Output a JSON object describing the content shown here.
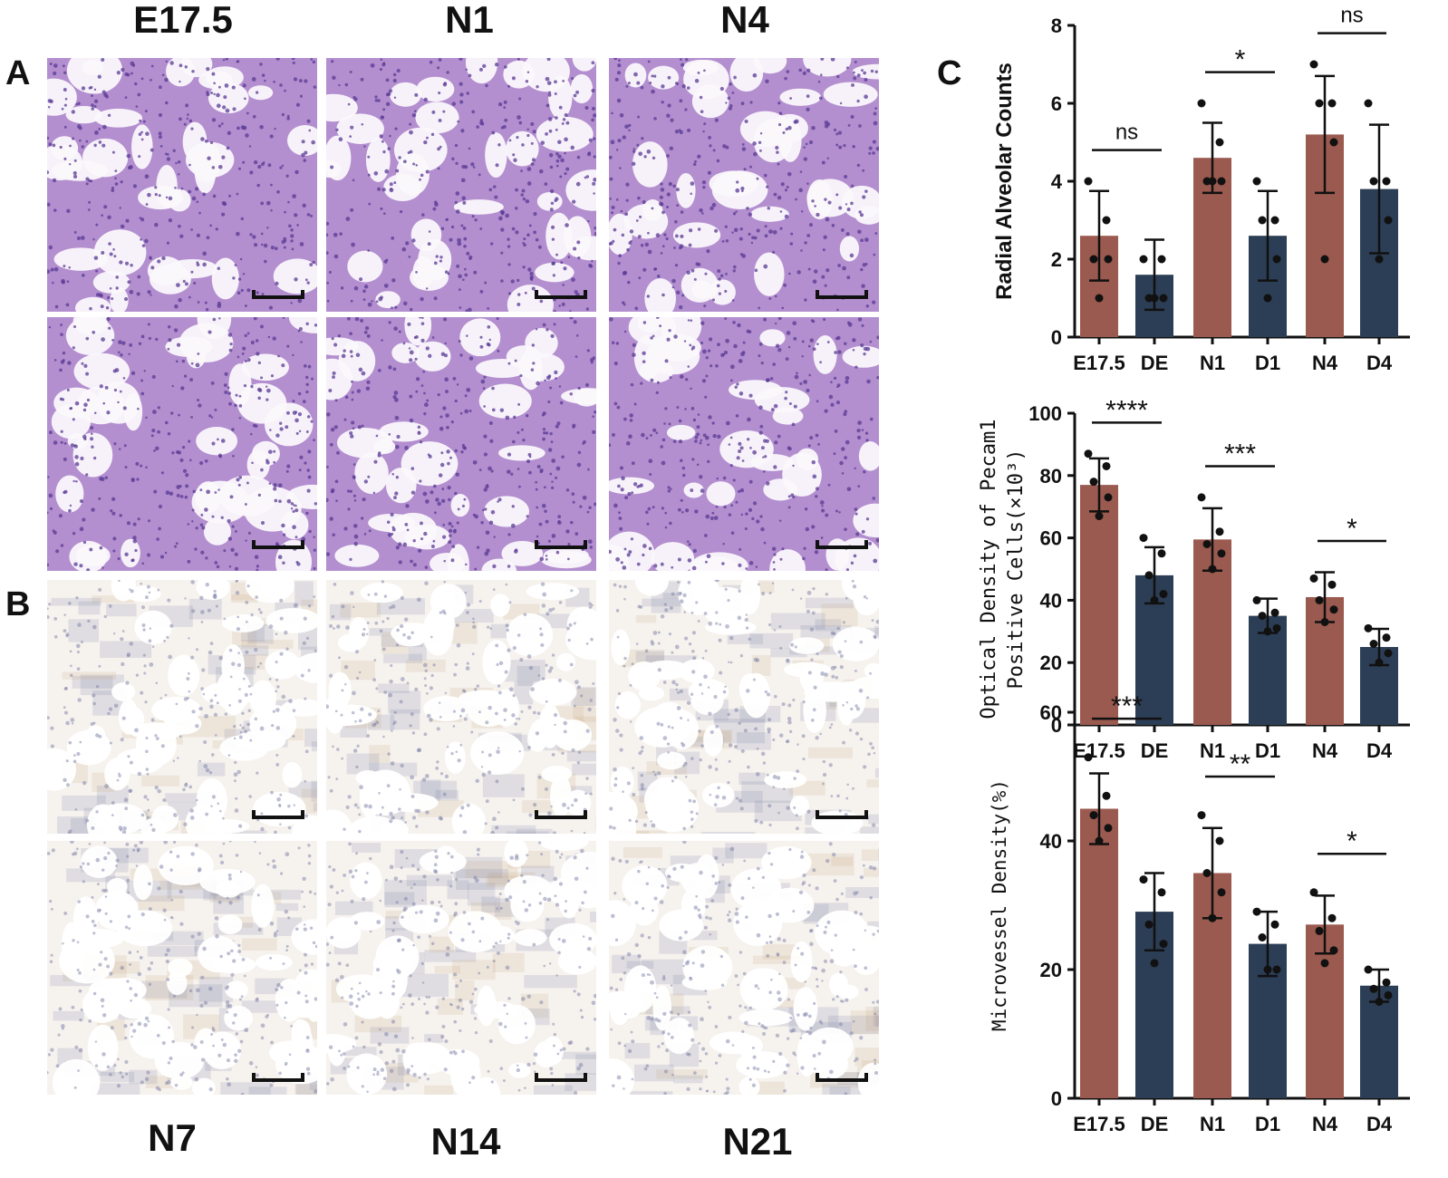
{
  "panels": {
    "A": "A",
    "B": "B",
    "C": "C"
  },
  "image_grid": {
    "top_labels": [
      "E17.5",
      "N1",
      "N4"
    ],
    "bottom_labels": [
      "N7",
      "N14",
      "N21"
    ]
  },
  "colors": {
    "normal": "#9b5a4f",
    "dexamethasone": "#2c3e55",
    "he_stain_bg": "#b38fcf",
    "he_stain_cell": "#5a3a94",
    "ihc_bg": "#f6f2ee",
    "ihc_cell": "#7c7fa8",
    "ihc_brown": "#c9a77e"
  },
  "chart_data": [
    {
      "type": "bar",
      "ylabel": "Radial Alveolar Counts",
      "categories": [
        "E17.5",
        "DE",
        "N1",
        "D1",
        "N4",
        "D4"
      ],
      "values": [
        2.6,
        1.6,
        4.6,
        2.6,
        5.2,
        3.8
      ],
      "errors": [
        1.15,
        0.9,
        0.9,
        1.15,
        1.5,
        1.65
      ],
      "points": [
        [
          4,
          3,
          2,
          2,
          1
        ],
        [
          2,
          2,
          1,
          1,
          1
        ],
        [
          6,
          5,
          4,
          4,
          4
        ],
        [
          4,
          3,
          3,
          2,
          1
        ],
        [
          7,
          6,
          6,
          5,
          2
        ],
        [
          6,
          4,
          4,
          3,
          2
        ]
      ],
      "ylim": [
        0,
        8
      ],
      "yticks": [
        0,
        2,
        4,
        6,
        8
      ],
      "significance": [
        {
          "from": 0,
          "to": 1,
          "label": "ns"
        },
        {
          "from": 2,
          "to": 3,
          "label": "*"
        },
        {
          "from": 4,
          "to": 5,
          "label": "ns"
        }
      ]
    },
    {
      "type": "bar",
      "ylabel_lines": [
        "Optical Density of Pecam1",
        "Positive Cells(×10³)"
      ],
      "categories": [
        "E17.5",
        "DE",
        "N1",
        "D1",
        "N4",
        "D4"
      ],
      "values": [
        77,
        48,
        59.5,
        35,
        41,
        25
      ],
      "errors": [
        8.5,
        9,
        10,
        5.5,
        8,
        5.8
      ],
      "points": [
        [
          87,
          83,
          78,
          73,
          67
        ],
        [
          60,
          55,
          48,
          42,
          40
        ],
        [
          73,
          62,
          58,
          55,
          50
        ],
        [
          40,
          36,
          35,
          31,
          30
        ],
        [
          47,
          45,
          40,
          37,
          33
        ],
        [
          31,
          28,
          26,
          23,
          20
        ]
      ],
      "ylim": [
        0,
        100
      ],
      "yticks": [
        0,
        20,
        40,
        60,
        80,
        100
      ],
      "significance": [
        {
          "from": 0,
          "to": 1,
          "label": "****"
        },
        {
          "from": 2,
          "to": 3,
          "label": "***"
        },
        {
          "from": 4,
          "to": 5,
          "label": "*"
        }
      ]
    },
    {
      "type": "bar",
      "ylabel": "Microvessel Density(%)",
      "categories": [
        "E17.5",
        "DE",
        "N1",
        "D1",
        "N4",
        "D4"
      ],
      "values": [
        45,
        29,
        35,
        24,
        27,
        17.5
      ],
      "errors": [
        5.5,
        6,
        7,
        5,
        4.5,
        2.5
      ],
      "points": [
        [
          53,
          47,
          44,
          42,
          40
        ],
        [
          34,
          32,
          27,
          24,
          21
        ],
        [
          44,
          40,
          35,
          32,
          28
        ],
        [
          29,
          27,
          25,
          20,
          20
        ],
        [
          32,
          28,
          26,
          23,
          21
        ],
        [
          20,
          18,
          17,
          16,
          15
        ]
      ],
      "ylim": [
        0,
        60
      ],
      "yticks": [
        0,
        20,
        40,
        60
      ],
      "significance": [
        {
          "from": 0,
          "to": 1,
          "label": "***"
        },
        {
          "from": 2,
          "to": 3,
          "label": "**"
        },
        {
          "from": 4,
          "to": 5,
          "label": "*"
        }
      ]
    }
  ]
}
